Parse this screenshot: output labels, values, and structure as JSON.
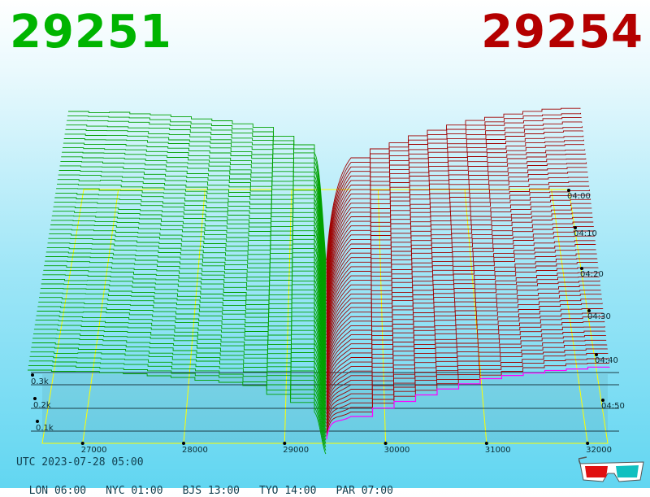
{
  "header": {
    "bid_price": "29251",
    "ask_price": "29254",
    "bid_color": "#00b400",
    "ask_color": "#b40000"
  },
  "footer": {
    "utc": "UTC 2023-07-28 05:00",
    "cities": [
      "LON 06:00",
      "NYC 01:00",
      "BJS 13:00",
      "TYO 14:00",
      "PAR 07:00"
    ]
  },
  "chart_data": {
    "type": "area",
    "x_ticks": [
      "27000",
      "28000",
      "29000",
      "30000",
      "31000",
      "32000"
    ],
    "x_tick_values": [
      27000,
      28000,
      29000,
      30000,
      31000,
      32000
    ],
    "depth_ticks": [
      "0.1k",
      "0.2k",
      "0.3k"
    ],
    "time_ticks": [
      "04:00",
      "04:10",
      "04:20",
      "04:30",
      "04:40",
      "04:50"
    ],
    "series": [
      {
        "side": "bid",
        "color": "#00a000"
      },
      {
        "side": "ask",
        "color": "#a00000"
      }
    ],
    "accent_color": "#ff00ff",
    "grid_color": "#ffff00"
  }
}
